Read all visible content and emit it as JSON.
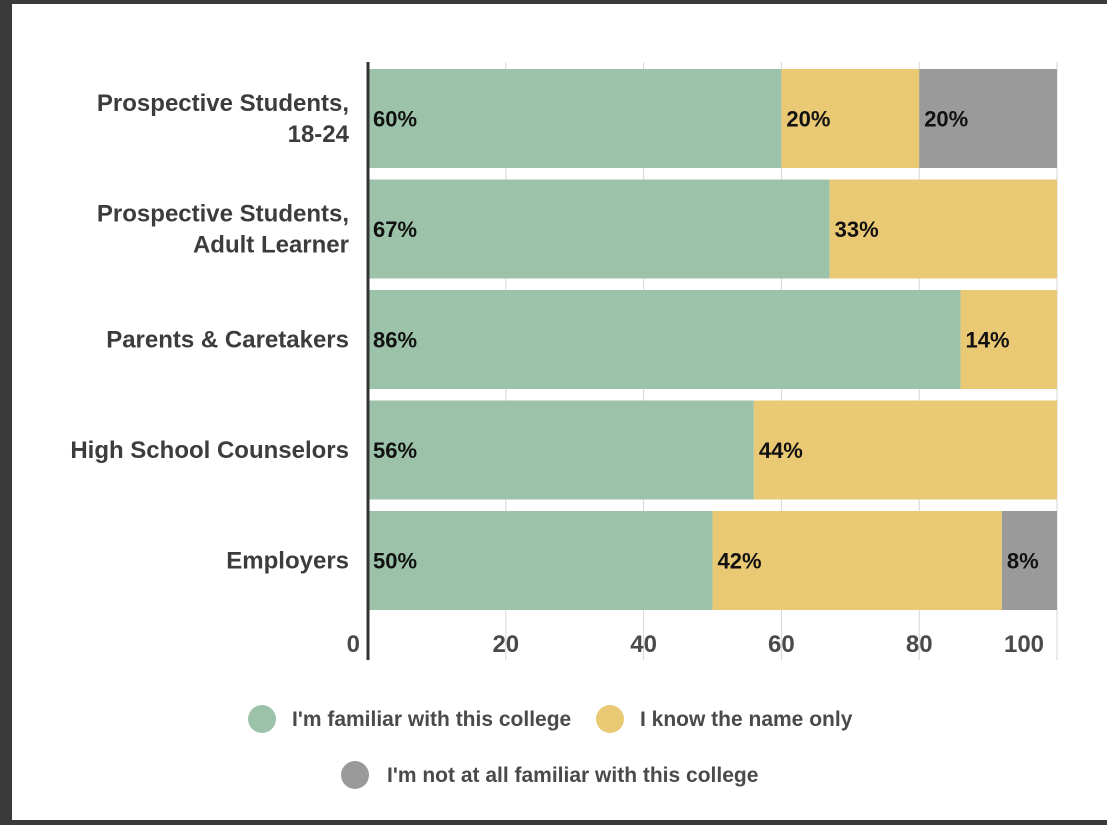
{
  "chart_data": {
    "type": "bar",
    "orientation": "horizontal",
    "stacked": true,
    "categories": [
      [
        "Prospective Students,",
        "18-24"
      ],
      [
        "Prospective Students,",
        "Adult Learner"
      ],
      [
        "Parents & Caretakers"
      ],
      [
        "High School Counselors"
      ],
      [
        "Employers"
      ]
    ],
    "series": [
      {
        "name": "I'm familiar with this college",
        "color": "#9cc3aa",
        "values": [
          60,
          67,
          86,
          56,
          50
        ],
        "labels": [
          "60%",
          "67%",
          "86%",
          "56%",
          "50%"
        ]
      },
      {
        "name": "I know the name only",
        "color": "#eac975",
        "values": [
          20,
          33,
          14,
          44,
          42
        ],
        "labels": [
          "20%",
          "33%",
          "14%",
          "44%",
          "42%"
        ]
      },
      {
        "name": "I'm not at all familiar with this college",
        "color": "#9a9a9a",
        "values": [
          20,
          0,
          0,
          0,
          8
        ],
        "labels": [
          "20%",
          "",
          "",
          "",
          "8%"
        ]
      }
    ],
    "xlim": [
      0,
      100
    ],
    "xticks": [
      0,
      20,
      40,
      60,
      80,
      100
    ],
    "grid": true,
    "legend_position": "bottom"
  }
}
